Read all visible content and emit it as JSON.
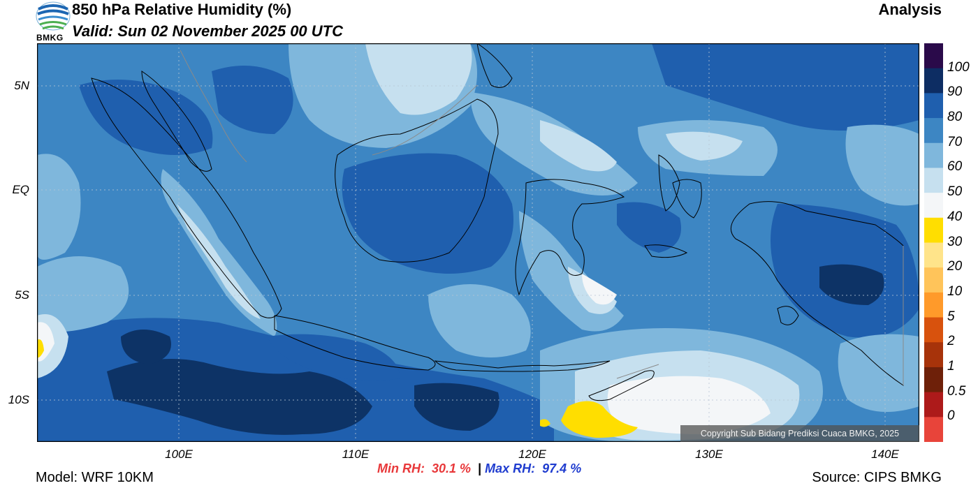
{
  "header": {
    "title": "850 hPa Relative Humidity (%)",
    "valid": "Valid: Sun 02 November 2025 00 UTC",
    "product": "Analysis",
    "logo_text": "BMKG"
  },
  "map": {
    "lat_ticks": [
      "5N",
      "EQ",
      "5S",
      "10S"
    ],
    "lon_ticks": [
      "100E",
      "110E",
      "120E",
      "130E",
      "140E"
    ],
    "copyright": "Copyright Sub Bidang Prediksi Cuaca BMKG, 2025"
  },
  "stats": {
    "min_label": "Min RH:",
    "min_value": "30.1 %",
    "separator": "|",
    "max_label": "Max RH:",
    "max_value": "97.4 %"
  },
  "footer": {
    "model": "Model: WRF 10KM",
    "source": "Source: CIPS BMKG"
  },
  "colorbar": {
    "labels": [
      "100",
      "90",
      "80",
      "70",
      "60",
      "50",
      "40",
      "30",
      "20",
      "10",
      "5",
      "2",
      "1",
      "0.5",
      "0"
    ],
    "colors": [
      "#2a0a4a",
      "#0d2d63",
      "#1f5fae",
      "#3d86c3",
      "#7fb7dc",
      "#c6e0ef",
      "#f4f6f8",
      "#ffde00",
      "#ffe48a",
      "#ffc45a",
      "#ff9a2a",
      "#d8520d",
      "#a7330a",
      "#6e2009",
      "#ad1a1a",
      "#e8443a"
    ]
  },
  "colors": {
    "rh_90_100": "#0d3366",
    "rh_80_90": "#1f5fae",
    "rh_70_80": "#3d86c3",
    "rh_60_70": "#7fb7dc",
    "rh_50_60": "#c6e0ef",
    "rh_40_50": "#f4f6f8",
    "rh_30_40": "#ffde00"
  }
}
